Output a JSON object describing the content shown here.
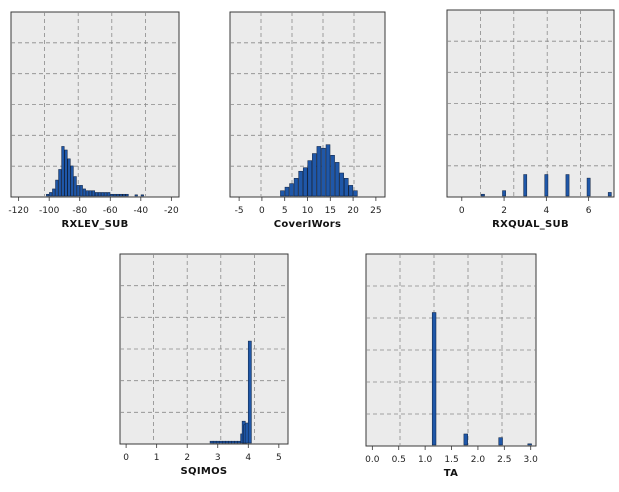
{
  "chart_data": [
    {
      "type": "bar",
      "xlabel": "RXLEV_SUB",
      "xticks": [
        -120,
        -100,
        -80,
        -60,
        -40,
        -20
      ],
      "xlim": [
        -125,
        -15
      ],
      "ylim": [
        0,
        100
      ],
      "grid": true,
      "bar_color": "#1f57a8",
      "bins": [
        {
          "x": -101,
          "v": 1
        },
        {
          "x": -99,
          "v": 2
        },
        {
          "x": -97,
          "v": 4
        },
        {
          "x": -95,
          "v": 9
        },
        {
          "x": -93,
          "v": 15
        },
        {
          "x": -91,
          "v": 28
        },
        {
          "x": -89,
          "v": 26
        },
        {
          "x": -87,
          "v": 21
        },
        {
          "x": -85,
          "v": 17
        },
        {
          "x": -83,
          "v": 11
        },
        {
          "x": -81,
          "v": 6
        },
        {
          "x": -79,
          "v": 6
        },
        {
          "x": -77,
          "v": 4
        },
        {
          "x": -75,
          "v": 3
        },
        {
          "x": -73,
          "v": 3
        },
        {
          "x": -71,
          "v": 3
        },
        {
          "x": -69,
          "v": 2
        },
        {
          "x": -67,
          "v": 2
        },
        {
          "x": -65,
          "v": 2
        },
        {
          "x": -63,
          "v": 2
        },
        {
          "x": -61,
          "v": 2
        },
        {
          "x": -59,
          "v": 1
        },
        {
          "x": -57,
          "v": 1
        },
        {
          "x": -55,
          "v": 1
        },
        {
          "x": -53,
          "v": 1
        },
        {
          "x": -51,
          "v": 1
        },
        {
          "x": -49,
          "v": 1
        },
        {
          "x": -43,
          "v": 0.5
        },
        {
          "x": -39,
          "v": 0.5
        }
      ]
    },
    {
      "type": "bar",
      "xlabel": "CoverIWors",
      "xticks": [
        -5,
        0,
        5,
        10,
        15,
        20,
        25
      ],
      "xlim": [
        -7,
        27
      ],
      "ylim": [
        0,
        100
      ],
      "grid": true,
      "bar_color": "#1f57a8",
      "bins": [
        {
          "x": 4.5,
          "v": 3
        },
        {
          "x": 5.5,
          "v": 5
        },
        {
          "x": 6.5,
          "v": 7
        },
        {
          "x": 7.5,
          "v": 10
        },
        {
          "x": 8.5,
          "v": 14
        },
        {
          "x": 9.5,
          "v": 16
        },
        {
          "x": 10.5,
          "v": 20
        },
        {
          "x": 11.5,
          "v": 24
        },
        {
          "x": 12.5,
          "v": 28
        },
        {
          "x": 13.5,
          "v": 27
        },
        {
          "x": 14.5,
          "v": 29
        },
        {
          "x": 15.5,
          "v": 23
        },
        {
          "x": 16.5,
          "v": 19
        },
        {
          "x": 17.5,
          "v": 13
        },
        {
          "x": 18.5,
          "v": 10
        },
        {
          "x": 19.5,
          "v": 6
        },
        {
          "x": 20.5,
          "v": 3
        }
      ]
    },
    {
      "type": "bar",
      "xlabel": "RXQUAL_SUB",
      "xticks": [
        0,
        2,
        4,
        6
      ],
      "xlim": [
        -0.7,
        7.2
      ],
      "ylim": [
        0,
        100
      ],
      "grid": true,
      "bar_color": "#1f57a8",
      "bins": [
        {
          "x": 1,
          "v": 1
        },
        {
          "x": 2,
          "v": 3
        },
        {
          "x": 3,
          "v": 12
        },
        {
          "x": 4,
          "v": 12
        },
        {
          "x": 5,
          "v": 12
        },
        {
          "x": 6,
          "v": 10
        },
        {
          "x": 7,
          "v": 2
        }
      ]
    },
    {
      "type": "bar",
      "xlabel": "SQIMOS",
      "xticks": [
        0,
        1,
        2,
        3,
        4,
        5
      ],
      "xlim": [
        -0.2,
        5.3
      ],
      "ylim": [
        0,
        100
      ],
      "grid": true,
      "bar_color": "#1f57a8",
      "bins": [
        {
          "x": 2.8,
          "v": 1
        },
        {
          "x": 2.9,
          "v": 1
        },
        {
          "x": 3.0,
          "v": 1
        },
        {
          "x": 3.1,
          "v": 1
        },
        {
          "x": 3.2,
          "v": 1
        },
        {
          "x": 3.3,
          "v": 1
        },
        {
          "x": 3.4,
          "v": 1
        },
        {
          "x": 3.5,
          "v": 1
        },
        {
          "x": 3.6,
          "v": 1
        },
        {
          "x": 3.7,
          "v": 1
        },
        {
          "x": 3.8,
          "v": 5
        },
        {
          "x": 3.85,
          "v": 12
        },
        {
          "x": 3.9,
          "v": 10
        },
        {
          "x": 3.95,
          "v": 11
        },
        {
          "x": 4.05,
          "v": 56
        }
      ]
    },
    {
      "type": "bar",
      "xlabel": "TA",
      "xticks": [
        "0.0",
        "0.5",
        "1.0",
        "1.5",
        "2.0",
        "2.5",
        "3.0"
      ],
      "xlim": [
        -0.12,
        3.1
      ],
      "ylim": [
        0,
        100
      ],
      "grid": true,
      "bar_color": "#1f57a8",
      "bins": [
        {
          "x": 1.17,
          "v": 72
        },
        {
          "x": 1.77,
          "v": 6
        },
        {
          "x": 2.43,
          "v": 4
        },
        {
          "x": 2.98,
          "v": 0.6
        }
      ]
    }
  ]
}
